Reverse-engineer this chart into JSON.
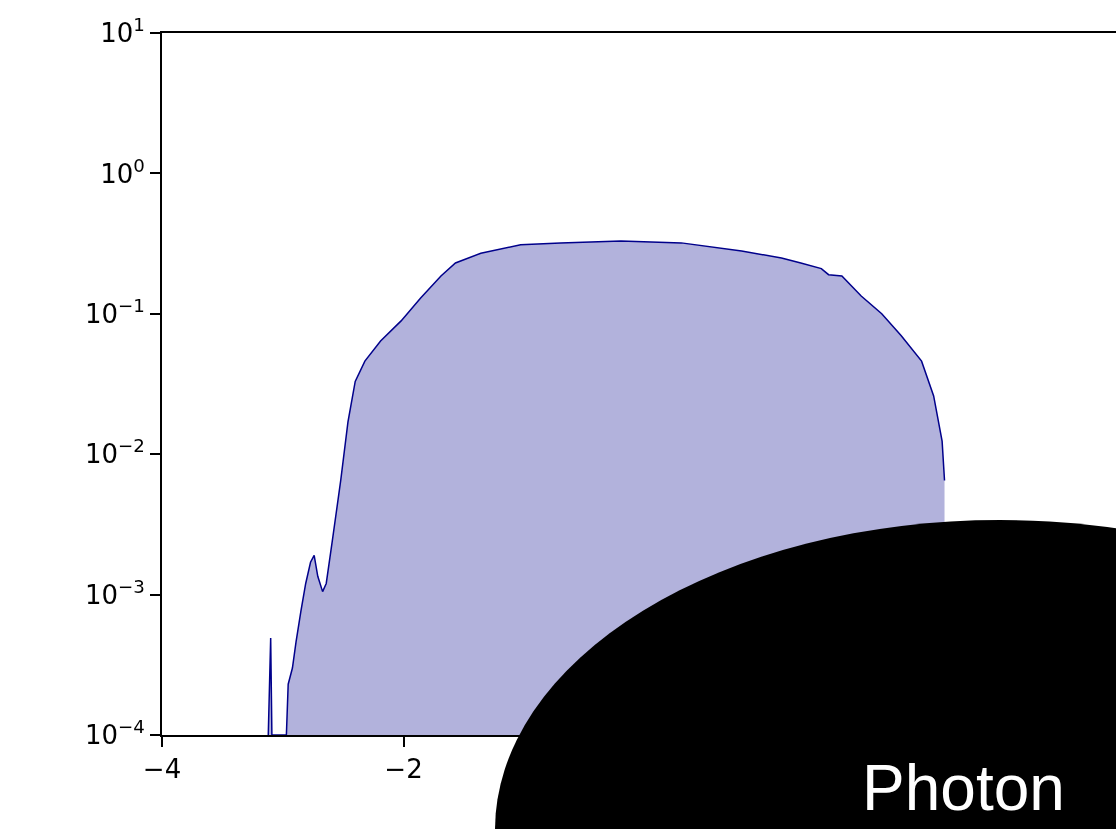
{
  "chart_data": {
    "type": "area",
    "log": "y",
    "grid": false,
    "marker": "none",
    "line_style": "solid",
    "xlim": [
      -4,
      3.9
    ],
    "xticks": [
      {
        "value": -4,
        "label": "−4"
      },
      {
        "value": -2,
        "label": "−2"
      }
    ],
    "ylim": [
      0.0001,
      10
    ],
    "yticks": [
      {
        "value": 0.0001,
        "label": "10$^{−4}$"
      },
      {
        "value": 0.001,
        "label": "10$^{−3}$"
      },
      {
        "value": 0.01,
        "label": "10$^{−2}$"
      },
      {
        "value": 0.1,
        "label": "10$^{−1}$"
      },
      {
        "value": 1,
        "label": "10$^{0}$"
      },
      {
        "value": 10,
        "label": "10$^{1}$"
      }
    ],
    "annotations": [
      "Photon"
    ],
    "series": [
      {
        "color": "#00008b",
        "x": [
          -3.12,
          -3.1,
          -3.09,
          -2.97,
          -2.955,
          -2.92,
          -2.89,
          -2.85,
          -2.81,
          -2.77,
          -2.74,
          -2.71,
          -2.67,
          -2.64,
          -2.59,
          -2.52,
          -2.46,
          -2.4,
          -2.32,
          -2.19,
          -2.02,
          -1.86,
          -1.69,
          -1.57,
          -1.36,
          -1.03,
          -0.7,
          -0.2,
          0.3,
          0.8,
          1.13,
          1.29,
          1.46,
          1.52,
          1.63,
          1.79,
          1.96,
          2.12,
          2.29,
          2.39,
          2.46,
          2.48
        ],
        "values": [
          0.0001,
          0.00049,
          0.0001,
          0.0001,
          0.00023,
          0.0003,
          0.00046,
          0.00076,
          0.0012,
          0.0017,
          0.0019,
          0.00135,
          0.00105,
          0.0012,
          0.0024,
          0.0065,
          0.017,
          0.033,
          0.046,
          0.064,
          0.089,
          0.129,
          0.186,
          0.23,
          0.27,
          0.31,
          0.32,
          0.33,
          0.32,
          0.28,
          0.25,
          0.23,
          0.21,
          0.19,
          0.186,
          0.134,
          0.1,
          0.07,
          0.046,
          0.026,
          0.0124,
          0.0065
        ]
      }
    ]
  }
}
